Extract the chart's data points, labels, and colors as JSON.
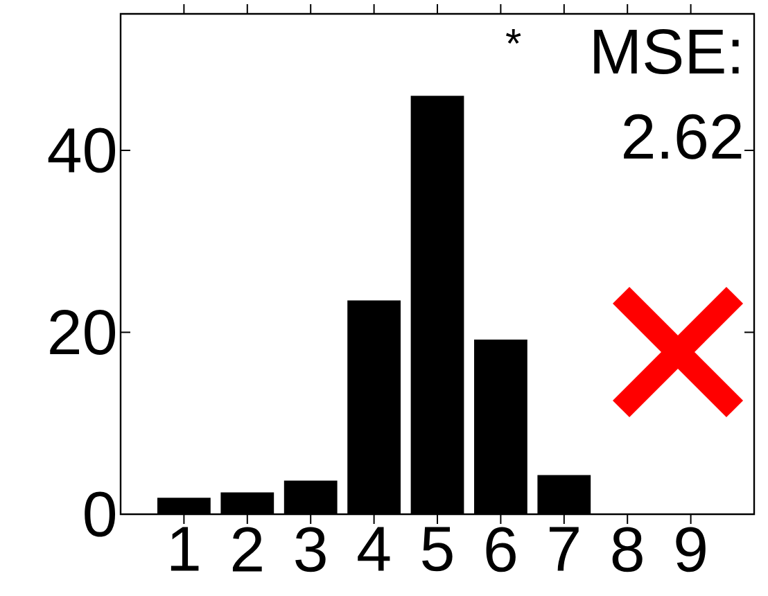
{
  "chart_data": {
    "type": "bar",
    "categories": [
      "1",
      "2",
      "3",
      "4",
      "5",
      "6",
      "7",
      "8",
      "9"
    ],
    "values": [
      1.8,
      2.4,
      3.7,
      23.5,
      46,
      19.2,
      4.3,
      0,
      0
    ],
    "color": "#000000",
    "ylim": [
      0,
      55
    ],
    "yticks": [
      0,
      20,
      40
    ],
    "annotations": [
      "*",
      "MSE:",
      "2.62"
    ]
  }
}
